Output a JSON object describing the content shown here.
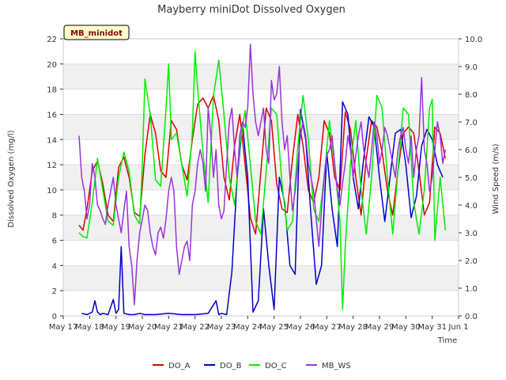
{
  "chart_data": {
    "type": "line",
    "title": "Mayberry miniDot Dissolved Oxygen",
    "xlabel": "Time",
    "ylabel": "Dissolved Oxygen (mg/l)",
    "y2label": "Wind Speed (m/s)",
    "tag": "MB_minidot",
    "x_ticks": [
      "May 17",
      "May 18",
      "May 19",
      "May 20",
      "May 21",
      "May 22",
      "May 23",
      "May 24",
      "May 25",
      "May 26",
      "May 27",
      "May 28",
      "May 29",
      "May 30",
      "May 31",
      "Jun 1"
    ],
    "xlim": [
      17,
      32
    ],
    "ylim": [
      0,
      22
    ],
    "y_ticks": [
      "0",
      "2",
      "4",
      "6",
      "8",
      "10",
      "12",
      "14",
      "16",
      "18",
      "20",
      "22"
    ],
    "y2lim": [
      0,
      10
    ],
    "y2_ticks": [
      "0.0",
      "1.0",
      "2.0",
      "3.0",
      "4.0",
      "5.0",
      "6.0",
      "7.0",
      "8.0",
      "9.0",
      "10.0"
    ],
    "grid": "horizontal bands",
    "legend_position": "bottom",
    "series": [
      {
        "name": "DO_A",
        "color": "#dd0000",
        "axis": "left",
        "x": [
          17.6,
          17.75,
          17.9,
          18.1,
          18.3,
          18.5,
          18.7,
          18.9,
          19.1,
          19.3,
          19.5,
          19.7,
          19.9,
          20.1,
          20.3,
          20.5,
          20.7,
          20.9,
          21.1,
          21.3,
          21.5,
          21.7,
          21.9,
          22.1,
          22.3,
          22.5,
          22.7,
          22.9,
          23.1,
          23.3,
          23.5,
          23.7,
          23.9,
          24.1,
          24.3,
          24.5,
          24.7,
          24.9,
          25.1,
          25.3,
          25.5,
          25.7,
          25.9,
          26.1,
          26.3,
          26.5,
          26.7,
          26.9,
          27.1,
          27.3,
          27.5,
          27.7,
          27.9,
          28.1,
          28.3,
          28.5,
          28.7,
          28.9,
          29.1,
          29.3,
          29.5,
          29.7,
          29.9,
          30.1,
          30.3,
          30.5,
          30.7,
          30.9,
          31.1,
          31.3,
          31.5
        ],
        "y": [
          7.2,
          6.8,
          8.5,
          11.5,
          12.3,
          10.5,
          8.0,
          7.5,
          11.8,
          12.6,
          11.0,
          8.2,
          7.9,
          12.8,
          16.0,
          14.5,
          11.5,
          11.0,
          15.5,
          14.8,
          12.0,
          10.8,
          14.0,
          16.8,
          17.3,
          16.5,
          17.5,
          15.5,
          11.0,
          9.2,
          13.5,
          16.0,
          12.0,
          7.8,
          6.5,
          11.5,
          16.5,
          15.5,
          10.5,
          8.5,
          8.2,
          12.5,
          16.0,
          13.5,
          10.0,
          9.0,
          11.0,
          15.5,
          14.5,
          11.0,
          10.0,
          16.2,
          14.8,
          11.0,
          8.0,
          12.5,
          15.5,
          15.0,
          13.0,
          10.0,
          8.0,
          11.5,
          14.5,
          15.0,
          14.5,
          11.5,
          8.0,
          9.0,
          15.0,
          14.5,
          12.5
        ]
      },
      {
        "name": "DO_B",
        "color": "#0000cc",
        "axis": "left",
        "x": [
          17.7,
          17.9,
          18.1,
          18.2,
          18.3,
          18.4,
          18.5,
          18.7,
          18.9,
          19.0,
          19.1,
          19.2,
          19.3,
          19.5,
          19.7,
          19.9,
          20.1,
          20.5,
          21.0,
          21.5,
          22.0,
          22.5,
          22.8,
          22.9,
          23.0,
          23.2,
          23.4,
          23.6,
          23.8,
          24.0,
          24.2,
          24.4,
          24.6,
          24.8,
          25.0,
          25.2,
          25.4,
          25.6,
          25.8,
          26.0,
          26.2,
          26.4,
          26.6,
          26.8,
          27.0,
          27.2,
          27.4,
          27.6,
          27.8,
          28.0,
          28.2,
          28.4,
          28.6,
          28.8,
          29.0,
          29.2,
          29.4,
          29.6,
          29.8,
          30.0,
          30.2,
          30.4,
          30.6,
          30.8,
          31.0,
          31.2,
          31.4
        ],
        "y": [
          0.2,
          0.1,
          0.3,
          1.2,
          0.3,
          0.1,
          0.2,
          0.1,
          1.3,
          0.2,
          0.5,
          5.5,
          0.2,
          0.1,
          0.1,
          0.2,
          0.1,
          0.1,
          0.2,
          0.1,
          0.1,
          0.2,
          1.2,
          0.1,
          0.2,
          0.1,
          3.5,
          11.0,
          15.2,
          11.0,
          0.3,
          1.2,
          8.5,
          4.0,
          0.5,
          11.0,
          9.0,
          4.0,
          3.3,
          16.4,
          14.0,
          8.0,
          2.5,
          4.0,
          13.0,
          8.5,
          5.5,
          17.0,
          16.0,
          11.0,
          8.5,
          12.5,
          15.8,
          15.0,
          11.0,
          7.5,
          11.0,
          14.5,
          14.8,
          12.0,
          7.8,
          9.5,
          13.5,
          14.8,
          14.0,
          12.0,
          11.0
        ]
      },
      {
        "name": "DO_C",
        "color": "#00ee00",
        "axis": "left",
        "x": [
          17.6,
          17.75,
          17.9,
          18.1,
          18.3,
          18.5,
          18.7,
          18.9,
          19.1,
          19.3,
          19.5,
          19.7,
          19.9,
          20.0,
          20.1,
          20.3,
          20.5,
          20.7,
          20.9,
          21.0,
          21.1,
          21.3,
          21.5,
          21.7,
          21.9,
          22.0,
          22.1,
          22.3,
          22.5,
          22.7,
          22.9,
          23.1,
          23.3,
          23.5,
          23.7,
          23.9,
          24.1,
          24.3,
          24.5,
          24.7,
          24.9,
          25.1,
          25.3,
          25.5,
          25.7,
          25.9,
          26.1,
          26.3,
          26.5,
          26.7,
          26.9,
          27.1,
          27.3,
          27.5,
          27.6,
          27.7,
          27.9,
          28.1,
          28.3,
          28.5,
          28.7,
          28.9,
          29.1,
          29.3,
          29.5,
          29.7,
          29.9,
          30.1,
          30.3,
          30.5,
          30.7,
          30.9,
          31.0,
          31.1,
          31.3,
          31.5
        ],
        "y": [
          6.6,
          6.3,
          6.2,
          9.0,
          12.5,
          10.0,
          7.5,
          7.2,
          11.0,
          13.0,
          11.5,
          8.0,
          7.3,
          12.0,
          18.8,
          16.0,
          10.8,
          10.3,
          16.5,
          20.0,
          14.0,
          14.5,
          12.0,
          9.5,
          14.5,
          21.0,
          18.0,
          13.0,
          9.0,
          17.5,
          20.3,
          16.0,
          11.0,
          8.8,
          13.5,
          16.3,
          12.0,
          7.5,
          6.5,
          11.5,
          16.5,
          16.0,
          10.5,
          6.8,
          7.5,
          13.5,
          17.5,
          14.0,
          8.5,
          7.5,
          11.0,
          15.5,
          12.0,
          7.5,
          0.5,
          5.5,
          12.0,
          15.5,
          10.0,
          6.5,
          11.0,
          17.5,
          16.5,
          11.0,
          6.5,
          11.5,
          16.5,
          16.0,
          9.0,
          6.5,
          10.0,
          16.5,
          17.2,
          6.0,
          11.0,
          6.8
        ]
      },
      {
        "name": "MB_WS",
        "color": "#9933dd",
        "axis": "right",
        "x": [
          17.6,
          17.7,
          17.8,
          17.9,
          18.0,
          18.1,
          18.2,
          18.3,
          18.4,
          18.5,
          18.6,
          18.7,
          18.8,
          18.9,
          19.0,
          19.1,
          19.2,
          19.3,
          19.4,
          19.5,
          19.6,
          19.7,
          19.8,
          19.9,
          20.0,
          20.1,
          20.2,
          20.3,
          20.4,
          20.5,
          20.6,
          20.7,
          20.8,
          20.9,
          21.0,
          21.1,
          21.2,
          21.3,
          21.4,
          21.5,
          21.6,
          21.7,
          21.8,
          21.9,
          22.0,
          22.1,
          22.2,
          22.3,
          22.4,
          22.5,
          22.6,
          22.7,
          22.8,
          22.9,
          23.0,
          23.1,
          23.2,
          23.3,
          23.4,
          23.5,
          23.6,
          23.7,
          23.8,
          23.9,
          24.0,
          24.1,
          24.2,
          24.3,
          24.4,
          24.5,
          24.6,
          24.7,
          24.8,
          24.9,
          25.0,
          25.1,
          25.2,
          25.3,
          25.4,
          25.5,
          25.6,
          25.7,
          25.8,
          25.9,
          26.0,
          26.1,
          26.2,
          26.3,
          26.4,
          26.5,
          26.6,
          26.7,
          26.8,
          26.9,
          27.0,
          27.1,
          27.2,
          27.3,
          27.4,
          27.5,
          27.6,
          27.7,
          27.8,
          27.9,
          28.0,
          28.1,
          28.2,
          28.3,
          28.4,
          28.5,
          28.6,
          28.7,
          28.8,
          28.9,
          29.0,
          29.1,
          29.2,
          29.3,
          29.4,
          29.5,
          29.6,
          29.7,
          29.8,
          29.9,
          30.0,
          30.1,
          30.2,
          30.3,
          30.4,
          30.5,
          30.6,
          30.7,
          30.8,
          30.9,
          31.0,
          31.1,
          31.2,
          31.3,
          31.4,
          31.5
        ],
        "y": [
          6.5,
          5.0,
          4.5,
          3.5,
          4.0,
          5.5,
          5.0,
          4.0,
          3.8,
          3.5,
          3.3,
          4.0,
          4.5,
          5.0,
          4.0,
          3.5,
          3.0,
          3.8,
          4.5,
          2.5,
          1.8,
          0.4,
          2.0,
          3.0,
          3.5,
          4.0,
          3.8,
          3.0,
          2.5,
          2.2,
          3.0,
          3.2,
          2.8,
          3.5,
          4.5,
          5.0,
          4.5,
          2.5,
          1.5,
          2.0,
          2.5,
          2.7,
          2.0,
          4.0,
          4.5,
          5.5,
          6.0,
          5.5,
          4.5,
          7.5,
          6.5,
          5.0,
          6.0,
          4.0,
          3.5,
          3.8,
          5.5,
          7.0,
          7.5,
          6.0,
          5.0,
          6.5,
          7.0,
          6.8,
          7.5,
          9.8,
          8.0,
          7.0,
          6.5,
          7.0,
          7.5,
          6.0,
          5.5,
          8.5,
          7.8,
          8.0,
          9.0,
          7.0,
          6.0,
          6.5,
          5.0,
          3.8,
          4.5,
          5.5,
          6.5,
          7.0,
          6.5,
          5.5,
          5.0,
          4.5,
          3.5,
          2.5,
          3.8,
          5.0,
          5.8,
          6.0,
          6.5,
          5.5,
          4.5,
          4.0,
          4.8,
          5.5,
          6.5,
          6.0,
          5.0,
          5.8,
          6.5,
          7.0,
          6.0,
          5.5,
          5.0,
          6.0,
          7.0,
          6.5,
          5.5,
          6.0,
          6.8,
          6.5,
          6.0,
          5.5,
          5.0,
          6.0,
          6.5,
          6.8,
          6.0,
          5.5,
          6.5,
          5.0,
          6.0,
          6.5,
          8.6,
          6.0,
          5.5,
          4.5,
          5.0,
          6.0,
          7.0,
          6.5,
          5.5,
          6.0
        ]
      }
    ]
  }
}
